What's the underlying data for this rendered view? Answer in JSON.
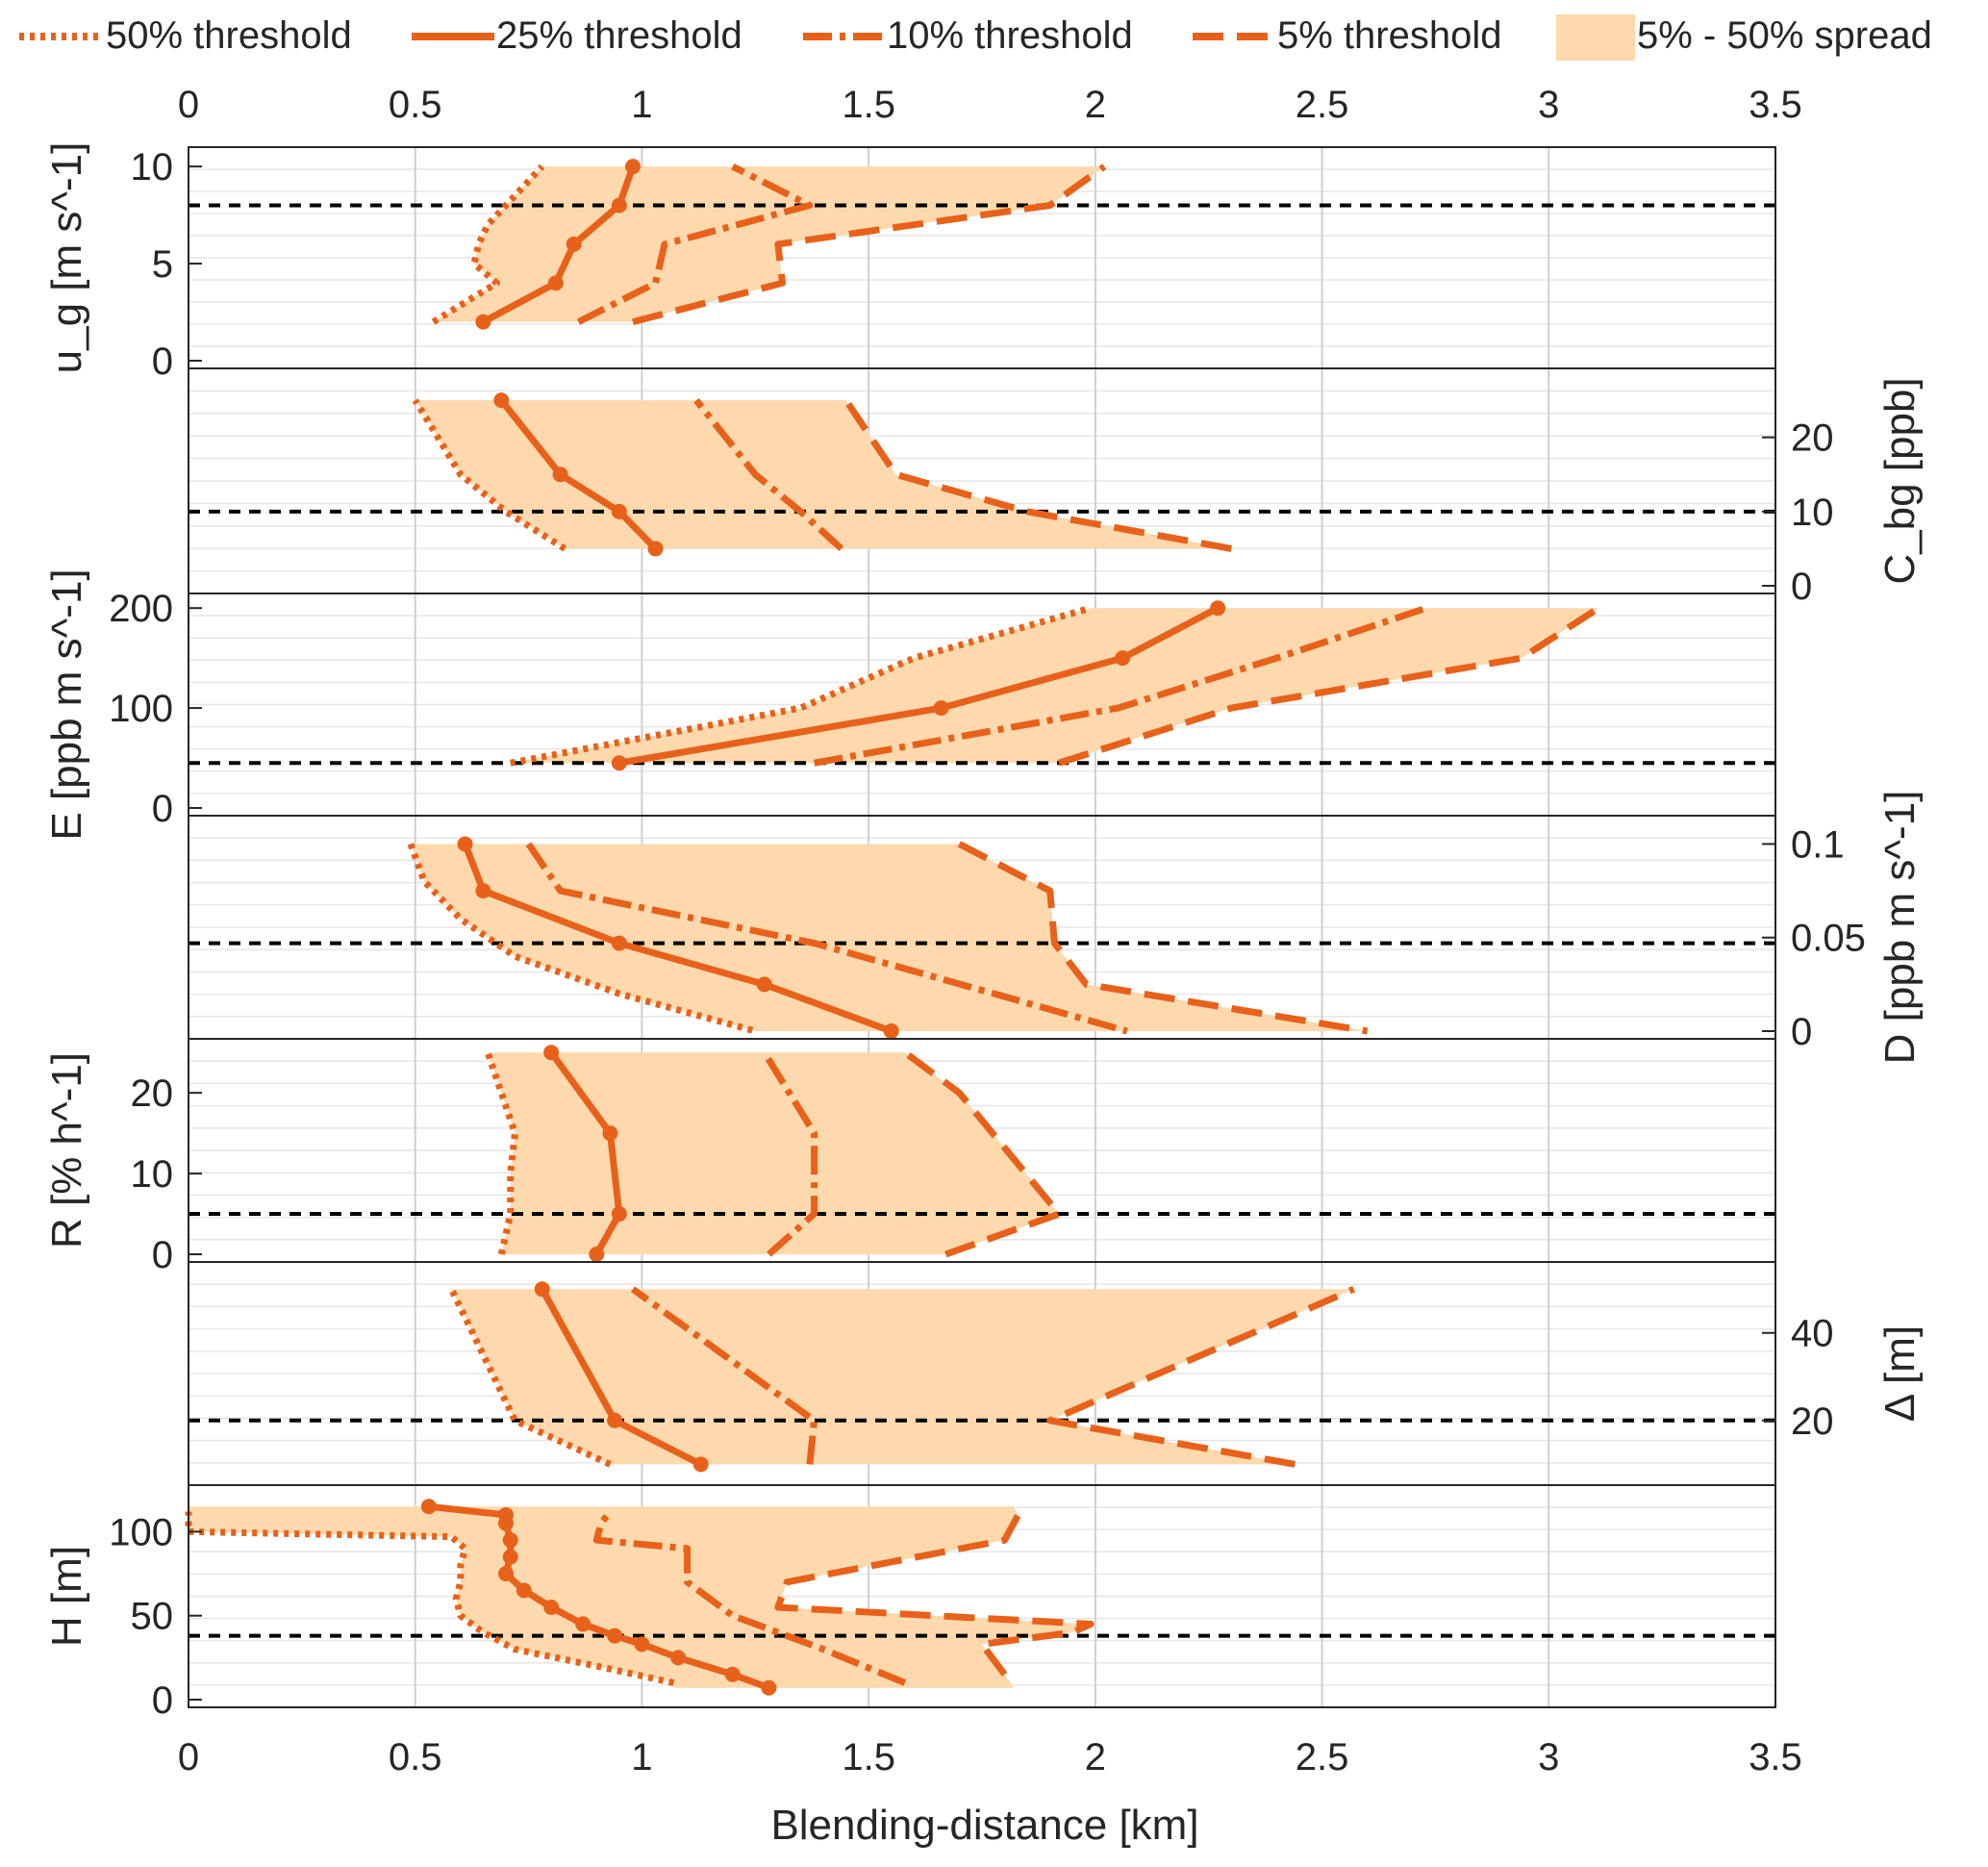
{
  "figure": {
    "xlabel": "Blending-distance [km]",
    "xlim": [
      0,
      3.5
    ],
    "xticks": [
      0,
      0.5,
      1,
      1.5,
      2,
      2.5,
      3,
      3.5
    ],
    "xtick_labels": [
      "0",
      "0.5",
      "1",
      "1.5",
      "2",
      "2.5",
      "3",
      "3.5"
    ]
  },
  "legend": [
    {
      "key": "p50",
      "label": "50% threshold",
      "style": "dotted"
    },
    {
      "key": "p25",
      "label": "25% threshold",
      "style": "solid"
    },
    {
      "key": "p10",
      "label": "10% threshold",
      "style": "dash-dot"
    },
    {
      "key": "p5",
      "label": "5% threshold",
      "style": "dashed"
    },
    {
      "key": "spread",
      "label": "5% - 50% spread",
      "style": "fill"
    }
  ],
  "colors": {
    "line": "#e8611a",
    "fill": "#fdd9ad",
    "reference": "#000000",
    "grid": "#d6d6d6",
    "axis": "#262626"
  },
  "chart_data": [
    {
      "type": "line",
      "param": "ug",
      "ylabel": "u_g [m s^-1]",
      "y_axis_side": "left",
      "ylim": [
        0,
        10.5
      ],
      "yticks": [
        0,
        5,
        10
      ],
      "reference": 8,
      "series": [
        {
          "name": "50% threshold",
          "points": [
            [
              0.54,
              2
            ],
            [
              0.61,
              3
            ],
            [
              0.68,
              4
            ],
            [
              0.63,
              5
            ],
            [
              0.64,
              6
            ],
            [
              0.66,
              7
            ],
            [
              0.7,
              8
            ],
            [
              0.78,
              10
            ]
          ]
        },
        {
          "name": "25% threshold",
          "points": [
            [
              0.65,
              2
            ],
            [
              0.81,
              4
            ],
            [
              0.85,
              6
            ],
            [
              0.95,
              8
            ],
            [
              0.98,
              10
            ]
          ]
        },
        {
          "name": "10% threshold",
          "points": [
            [
              0.86,
              2
            ],
            [
              1.03,
              4
            ],
            [
              1.05,
              6
            ],
            [
              1.37,
              8
            ],
            [
              1.2,
              10
            ]
          ]
        },
        {
          "name": "5% threshold",
          "points": [
            [
              0.98,
              2
            ],
            [
              1.31,
              4
            ],
            [
              1.3,
              6
            ],
            [
              1.9,
              8
            ],
            [
              2.02,
              10
            ]
          ]
        }
      ]
    },
    {
      "type": "line",
      "param": "Cbg",
      "ylabel": "C_bg [ppb]",
      "y_axis_side": "right",
      "ylim": [
        0,
        28
      ],
      "yticks": [
        0,
        10,
        20
      ],
      "reference": 10,
      "series": [
        {
          "name": "50% threshold",
          "points": [
            [
              0.83,
              5
            ],
            [
              0.7,
              10
            ],
            [
              0.6,
              15
            ],
            [
              0.55,
              20
            ],
            [
              0.5,
              25
            ]
          ]
        },
        {
          "name": "25% threshold",
          "points": [
            [
              1.03,
              5
            ],
            [
              0.95,
              10
            ],
            [
              0.82,
              15
            ],
            [
              0.69,
              25
            ]
          ]
        },
        {
          "name": "10% threshold",
          "points": [
            [
              1.44,
              5
            ],
            [
              1.35,
              10
            ],
            [
              1.25,
              15
            ],
            [
              1.12,
              25
            ]
          ]
        },
        {
          "name": "5% threshold",
          "points": [
            [
              2.3,
              5
            ],
            [
              1.85,
              10
            ],
            [
              1.56,
              15
            ],
            [
              1.45,
              25
            ]
          ]
        }
      ]
    },
    {
      "type": "line",
      "param": "E",
      "ylabel": "E [ppb m s^-1]",
      "y_axis_side": "left",
      "ylim": [
        0,
        205
      ],
      "yticks": [
        0,
        100,
        200
      ],
      "reference": 45,
      "series": [
        {
          "name": "50% threshold",
          "points": [
            [
              0.71,
              45
            ],
            [
              1.35,
              100
            ],
            [
              1.6,
              150
            ],
            [
              1.99,
              200
            ]
          ]
        },
        {
          "name": "25% threshold",
          "points": [
            [
              0.95,
              45
            ],
            [
              1.66,
              100
            ],
            [
              2.06,
              150
            ],
            [
              2.27,
              200
            ]
          ]
        },
        {
          "name": "10% threshold",
          "points": [
            [
              1.38,
              45
            ],
            [
              2.05,
              100
            ],
            [
              2.4,
              150
            ],
            [
              2.73,
              200
            ]
          ]
        },
        {
          "name": "5% threshold",
          "points": [
            [
              1.92,
              45
            ],
            [
              2.3,
              100
            ],
            [
              2.94,
              150
            ],
            [
              3.11,
              200
            ]
          ]
        }
      ]
    },
    {
      "type": "line",
      "param": "D",
      "ylabel": "D [ppb m s^-1]",
      "y_axis_side": "right",
      "ylim": [
        0,
        0.11
      ],
      "yticks": [
        0,
        0.05,
        0.1
      ],
      "ytick_labels": [
        "0",
        "0.05",
        "0.1"
      ],
      "reference": 0.047,
      "series": [
        {
          "name": "50% threshold",
          "points": [
            [
              0.49,
              0.1
            ],
            [
              0.52,
              0.08
            ],
            [
              0.6,
              0.06
            ],
            [
              0.72,
              0.04
            ],
            [
              0.95,
              0.02
            ],
            [
              1.25,
              0.0
            ]
          ]
        },
        {
          "name": "25% threshold",
          "points": [
            [
              0.61,
              0.1
            ],
            [
              0.65,
              0.075
            ],
            [
              0.95,
              0.047
            ],
            [
              1.27,
              0.025
            ],
            [
              1.55,
              0.0
            ]
          ]
        },
        {
          "name": "10% threshold",
          "points": [
            [
              0.75,
              0.1
            ],
            [
              0.82,
              0.075
            ],
            [
              1.38,
              0.047
            ],
            [
              2.07,
              0.0
            ]
          ]
        },
        {
          "name": "5% threshold",
          "points": [
            [
              1.7,
              0.1
            ],
            [
              1.9,
              0.075
            ],
            [
              1.91,
              0.047
            ],
            [
              1.98,
              0.025
            ],
            [
              2.6,
              0.0
            ]
          ]
        }
      ]
    },
    {
      "type": "line",
      "param": "R",
      "ylabel": "R [% h^-1]",
      "y_axis_side": "left",
      "ylim": [
        0,
        25.5
      ],
      "yticks": [
        0,
        10,
        20
      ],
      "reference": 5,
      "series": [
        {
          "name": "50% threshold",
          "points": [
            [
              0.69,
              0
            ],
            [
              0.71,
              5
            ],
            [
              0.71,
              10
            ],
            [
              0.72,
              15
            ],
            [
              0.66,
              25
            ]
          ]
        },
        {
          "name": "25% threshold",
          "points": [
            [
              0.9,
              0
            ],
            [
              0.95,
              5
            ],
            [
              0.93,
              15
            ],
            [
              0.8,
              25
            ]
          ]
        },
        {
          "name": "10% threshold",
          "points": [
            [
              1.28,
              0
            ],
            [
              1.38,
              5
            ],
            [
              1.38,
              15
            ],
            [
              1.27,
              25
            ]
          ]
        },
        {
          "name": "5% threshold",
          "points": [
            [
              1.67,
              0
            ],
            [
              1.92,
              5
            ],
            [
              1.7,
              20
            ],
            [
              1.58,
              25
            ]
          ]
        }
      ]
    },
    {
      "type": "line",
      "param": "Delta",
      "ylabel": "Δ [m]",
      "y_axis_side": "right",
      "ylim": [
        7,
        54
      ],
      "yticks": [
        20,
        40
      ],
      "reference": 20,
      "series": [
        {
          "name": "50% threshold",
          "points": [
            [
              0.93,
              10
            ],
            [
              0.72,
              20
            ],
            [
              0.58,
              50
            ]
          ]
        },
        {
          "name": "25% threshold",
          "points": [
            [
              1.13,
              10
            ],
            [
              0.94,
              20
            ],
            [
              0.78,
              50
            ]
          ]
        },
        {
          "name": "10% threshold",
          "points": [
            [
              1.37,
              10
            ],
            [
              1.38,
              20
            ],
            [
              0.98,
              50
            ]
          ]
        },
        {
          "name": "5% threshold",
          "points": [
            [
              2.44,
              10
            ],
            [
              1.9,
              20
            ],
            [
              2.57,
              50
            ]
          ]
        }
      ]
    },
    {
      "type": "line",
      "param": "H",
      "ylabel": "H [m]",
      "y_axis_side": "left",
      "ylim": [
        0,
        122
      ],
      "yticks": [
        0,
        50,
        100
      ],
      "reference": 38,
      "series": [
        {
          "name": "50% threshold",
          "points": [
            [
              1.07,
              10
            ],
            [
              0.9,
              20
            ],
            [
              0.72,
              30
            ],
            [
              0.65,
              40
            ],
            [
              0.6,
              50
            ],
            [
              0.59,
              60
            ],
            [
              0.6,
              70
            ],
            [
              0.6,
              80
            ],
            [
              0.61,
              90
            ],
            [
              0.58,
              97
            ],
            [
              0.0,
              100
            ],
            [
              0.0,
              112
            ]
          ]
        },
        {
          "name": "25% threshold",
          "points": [
            [
              1.28,
              7
            ],
            [
              1.2,
              15
            ],
            [
              1.08,
              25
            ],
            [
              1.0,
              33
            ],
            [
              0.94,
              38
            ],
            [
              0.87,
              45
            ],
            [
              0.8,
              55
            ],
            [
              0.74,
              65
            ],
            [
              0.7,
              75
            ],
            [
              0.71,
              85
            ],
            [
              0.71,
              95
            ],
            [
              0.7,
              105
            ],
            [
              0.7,
              110
            ],
            [
              0.53,
              115
            ]
          ]
        },
        {
          "name": "10% threshold",
          "points": [
            [
              1.58,
              10
            ],
            [
              1.4,
              30
            ],
            [
              1.2,
              50
            ],
            [
              1.1,
              70
            ],
            [
              1.1,
              90
            ],
            [
              0.9,
              95
            ],
            [
              0.91,
              105
            ],
            [
              0.93,
              112
            ]
          ]
        },
        {
          "name": "5% threshold",
          "points": [
            [
              1.8,
              15
            ],
            [
              1.75,
              33
            ],
            [
              1.95,
              40
            ],
            [
              1.99,
              45
            ],
            [
              1.3,
              55
            ],
            [
              1.32,
              70
            ],
            [
              1.8,
              95
            ],
            [
              1.83,
              110
            ]
          ]
        }
      ],
      "spread_polygon": [
        [
          0.0,
          115
        ],
        [
          1.82,
          115
        ],
        [
          1.83,
          110
        ],
        [
          1.8,
          95
        ],
        [
          1.32,
          70
        ],
        [
          1.3,
          55
        ],
        [
          1.99,
          45
        ],
        [
          1.95,
          40
        ],
        [
          1.75,
          33
        ],
        [
          1.8,
          15
        ],
        [
          1.82,
          7
        ],
        [
          1.07,
          7
        ],
        [
          1.07,
          10
        ],
        [
          0.9,
          20
        ],
        [
          0.72,
          30
        ],
        [
          0.65,
          40
        ],
        [
          0.6,
          50
        ],
        [
          0.59,
          60
        ],
        [
          0.6,
          70
        ],
        [
          0.6,
          80
        ],
        [
          0.61,
          90
        ],
        [
          0.58,
          97
        ],
        [
          0.0,
          100
        ]
      ]
    }
  ]
}
